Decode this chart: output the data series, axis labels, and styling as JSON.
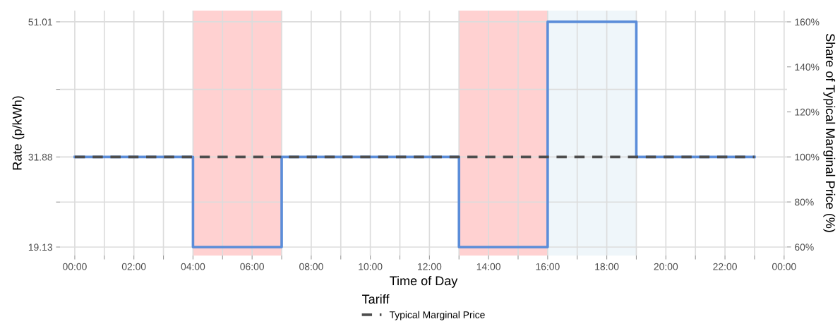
{
  "chart_data": {
    "type": "step",
    "xlabel": "Time of Day",
    "ylabel": "Rate (p/kWh)",
    "y2label": "Share of Typical Marginal Price (%)",
    "legend_title": "Tariff",
    "legend": "bottom",
    "grid": true,
    "line_style": "solid",
    "marker": "none",
    "series": [
      {
        "color": "#5b8dd9",
        "x": [
          0,
          4,
          7,
          13,
          16,
          19,
          23
        ],
        "values": [
          31.88,
          19.13,
          31.88,
          19.13,
          51.01,
          31.88,
          31.88
        ]
      },
      {
        "name": "Typical Marginal Price",
        "color": "#4d4d4d",
        "line_style": "dashed",
        "x": [
          0,
          23
        ],
        "values": [
          31.88,
          31.88
        ]
      }
    ],
    "bands": [
      {
        "axis": "x",
        "from": 4,
        "to": 7,
        "color": "#ffcccc"
      },
      {
        "axis": "x",
        "from": 13,
        "to": 16,
        "color": "#ffcccc"
      },
      {
        "axis": "x",
        "from": 16,
        "to": 19,
        "color": "#edf5f9"
      }
    ],
    "xlim": [
      -0.5,
      24.1
    ],
    "xticks": [
      {
        "value": 0,
        "label": "00:00"
      },
      {
        "value": 1,
        "label": null
      },
      {
        "value": 2,
        "label": "02:00"
      },
      {
        "value": 3,
        "label": null
      },
      {
        "value": 4,
        "label": "04:00"
      },
      {
        "value": 5,
        "label": null
      },
      {
        "value": 6,
        "label": "06:00"
      },
      {
        "value": 7,
        "label": null
      },
      {
        "value": 8,
        "label": "08:00"
      },
      {
        "value": 9,
        "label": null
      },
      {
        "value": 10,
        "label": "10:00"
      },
      {
        "value": 11,
        "label": null
      },
      {
        "value": 12,
        "label": "12:00"
      },
      {
        "value": 13,
        "label": null
      },
      {
        "value": 14,
        "label": "14:00"
      },
      {
        "value": 15,
        "label": null
      },
      {
        "value": 16,
        "label": "16:00"
      },
      {
        "value": 17,
        "label": null
      },
      {
        "value": 18,
        "label": "18:00"
      },
      {
        "value": 19,
        "label": null
      },
      {
        "value": 20,
        "label": "20:00"
      },
      {
        "value": 21,
        "label": null
      },
      {
        "value": 22,
        "label": "22:00"
      },
      {
        "value": 23,
        "label": null
      },
      {
        "value": 24,
        "label": "00:00"
      }
    ],
    "ylim": [
      17.93,
      52.6
    ],
    "yticks": [
      19.13,
      {
        "value": 25.5,
        "label": null
      },
      31.88,
      {
        "value": 41.45,
        "label": null
      },
      51.01
    ],
    "y2lim": [
      56.2,
      165
    ],
    "y2ticks": [
      {
        "value": 60,
        "label": "60%"
      },
      {
        "value": 80,
        "label": "80%"
      },
      {
        "value": 100,
        "label": "100%"
      },
      {
        "value": 120,
        "label": "120%"
      },
      {
        "value": 140,
        "label": "140%"
      },
      {
        "value": 160,
        "label": "160%"
      }
    ]
  }
}
